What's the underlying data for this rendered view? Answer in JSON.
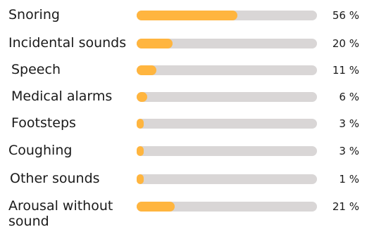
{
  "chart_data": {
    "type": "bar",
    "orientation": "horizontal",
    "categories": [
      "Snoring",
      "Incidental sounds",
      "Speech",
      "Medical alarms",
      "Footsteps",
      "Coughing",
      "Other sounds",
      "Arousal without sound"
    ],
    "values": [
      56,
      20,
      11,
      6,
      3,
      3,
      1,
      21
    ],
    "value_labels": [
      "56 %",
      "20 %",
      "11 %",
      "6 %",
      "3 %",
      "3 %",
      "1 %",
      "21 %"
    ],
    "xlim": [
      0,
      100
    ],
    "title": "",
    "xlabel": "",
    "ylabel": "",
    "grid": false,
    "colors": {
      "bar": "#ffb53f",
      "track": "#d9d6d6",
      "text": "#1a1a1a"
    }
  }
}
